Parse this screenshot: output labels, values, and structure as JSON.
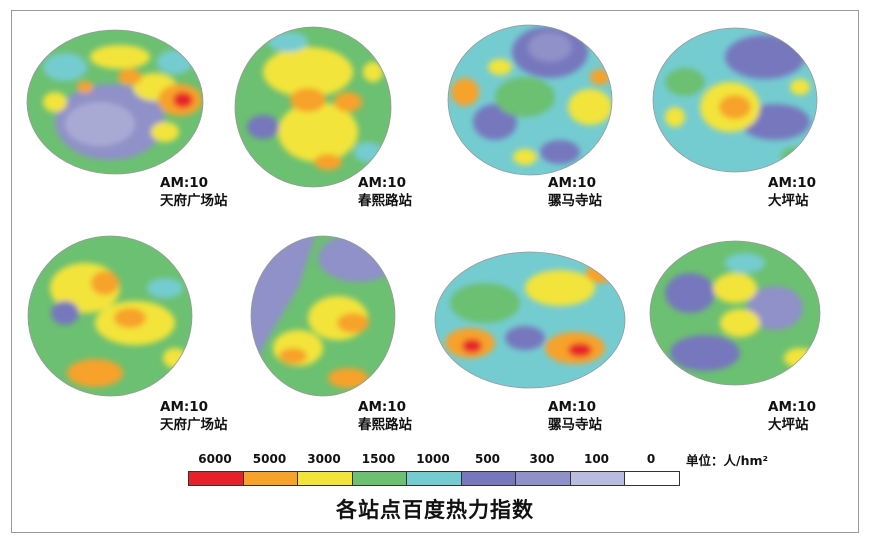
{
  "panels": [
    {
      "time": "AM:10",
      "station": "天府广场站"
    },
    {
      "time": "AM:10",
      "station": "春熙路站"
    },
    {
      "time": "AM:10",
      "station": "骡马寺站"
    },
    {
      "time": "AM:10",
      "station": "大坪站"
    },
    {
      "time": "AM:10",
      "station": "天府广场站"
    },
    {
      "time": "AM:10",
      "station": "春熙路站"
    },
    {
      "time": "AM:10",
      "station": "骡马寺站"
    },
    {
      "time": "AM:10",
      "station": "大坪站"
    }
  ],
  "legend": {
    "items": [
      {
        "label": "6000",
        "color": "#e8202a"
      },
      {
        "label": "5000",
        "color": "#f7a22b"
      },
      {
        "label": "3000",
        "color": "#f3e43b"
      },
      {
        "label": "1500",
        "color": "#6cc071"
      },
      {
        "label": "1000",
        "color": "#74ccd0"
      },
      {
        "label": "500",
        "color": "#7677bd"
      },
      {
        "label": "300",
        "color": "#8f91c8"
      },
      {
        "label": "100",
        "color": "#b9bbdf"
      },
      {
        "label": "0",
        "color": "#ffffff"
      }
    ],
    "unit": "单位：人/hm²"
  },
  "title": "各站点百度热力指数"
}
